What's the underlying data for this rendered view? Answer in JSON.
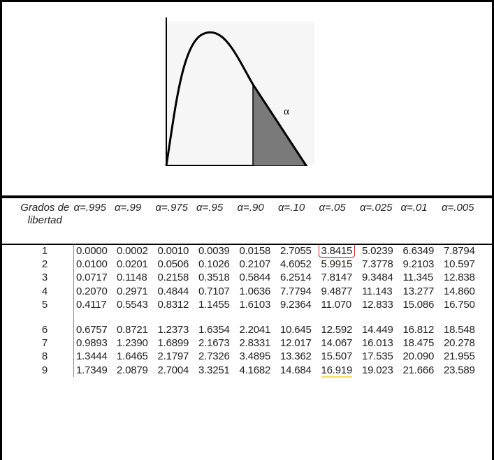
{
  "figure": {
    "alpha_label": "α"
  },
  "table": {
    "headers": [
      "Grados de\nlibertad",
      "α=.995",
      "α=.99",
      "α=.975",
      "α=.95",
      "α=.90",
      "α=.10",
      "α=.05",
      "α=.025",
      "α=.01",
      "α=.005"
    ],
    "rows": [
      [
        "1",
        "0.0000",
        "0.0002",
        "0.0010",
        "0.0039",
        "0.0158",
        "2.7055",
        "3.8415",
        "5.0239",
        "6.6349",
        "7.8794"
      ],
      [
        "2",
        "0.0100",
        "0.0201",
        "0.0506",
        "0.1026",
        "0.2107",
        "4.6052",
        "5.9915",
        "7.3778",
        "9.2103",
        "10.597"
      ],
      [
        "3",
        "0.0717",
        "0.1148",
        "0.2158",
        "0.3518",
        "0.5844",
        "6.2514",
        "7.8147",
        "9.3484",
        "11.345",
        "12.838"
      ],
      [
        "4",
        "0.2070",
        "0.2971",
        "0.4844",
        "0.7107",
        "1.0636",
        "7.7794",
        "9.4877",
        "11.143",
        "13.277",
        "14.860"
      ],
      [
        "5",
        "0.4117",
        "0.5543",
        "0.8312",
        "1.1455",
        "1.6103",
        "9.2364",
        "11.070",
        "12.833",
        "15.086",
        "16.750"
      ],
      [
        "6",
        "0.6757",
        "0.8721",
        "1.2373",
        "1.6354",
        "2.2041",
        "10.645",
        "12.592",
        "14.449",
        "16.812",
        "18.548"
      ],
      [
        "7",
        "0.9893",
        "1.2390",
        "1.6899",
        "2.1673",
        "2.8331",
        "12.017",
        "14.067",
        "16.013",
        "18.475",
        "20.278"
      ],
      [
        "8",
        "1.3444",
        "1.6465",
        "2.1797",
        "2.7326",
        "3.4895",
        "13.362",
        "15.507",
        "17.535",
        "20.090",
        "21.955"
      ],
      [
        "9",
        "1.7349",
        "2.0879",
        "2.7004",
        "3.3251",
        "4.1682",
        "14.684",
        "16.919",
        "19.023",
        "21.666",
        "23.589"
      ]
    ],
    "circled_cell": {
      "row": 0,
      "col": 7
    },
    "underlined_cell": {
      "row": 8,
      "col": 7
    }
  },
  "colors": {
    "circle": "#d42323",
    "underline": "#f3e04a",
    "shaded_area": "#7a7a7a"
  }
}
